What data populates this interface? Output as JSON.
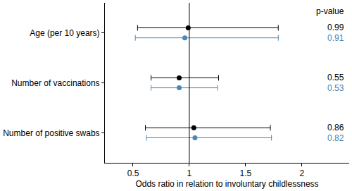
{
  "chart_data": {
    "type": "forest",
    "x_label": "Odds ratio in relation to involuntary childlessness",
    "categories": [
      "Age (per 10 years)",
      "Number of vaccinations",
      "Number of positive swabs"
    ],
    "series": [
      {
        "color": "#000000",
        "values": [
          0.99,
          0.91,
          1.04
        ],
        "lower": [
          0.54,
          0.66,
          0.61
        ],
        "upper": [
          1.79,
          1.26,
          1.72
        ],
        "p_values": [
          0.99,
          0.55,
          0.86
        ]
      },
      {
        "color": "#4a86b8",
        "values": [
          0.96,
          0.91,
          1.05
        ],
        "lower": [
          0.52,
          0.66,
          0.62
        ],
        "upper": [
          1.79,
          1.25,
          1.73
        ],
        "p_values": [
          0.91,
          0.53,
          0.82
        ]
      }
    ],
    "p_value_header": "p-value",
    "reference_line": 1,
    "xlim": [
      0.25,
      2.42
    ],
    "xticks": [
      0.5,
      1,
      1.5,
      2
    ],
    "marker": "circle"
  }
}
